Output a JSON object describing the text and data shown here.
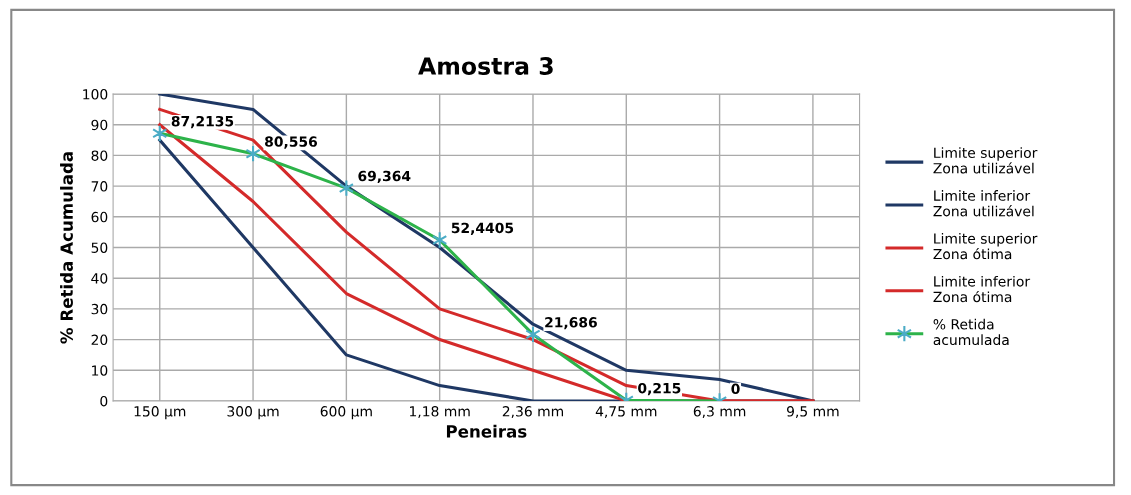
{
  "chart_data": {
    "type": "line",
    "title": "Amostra 3",
    "xlabel": "Peneiras",
    "ylabel": "% Retida Acumulada",
    "categories": [
      "150 µm",
      "300 µm",
      "600 µm",
      "1,18 mm",
      "2,36 mm",
      "4,75 mm",
      "6,3 mm",
      "9,5 mm"
    ],
    "series": [
      {
        "name": "Limite superior\nZona utilizável",
        "color": "#1f3864",
        "values": [
          100,
          95,
          70,
          50,
          25,
          10,
          7,
          0
        ]
      },
      {
        "name": "Limite inferior\nZona utilizável",
        "color": "#1f3864",
        "values": [
          85,
          50,
          15,
          5,
          0,
          0,
          0,
          0
        ]
      },
      {
        "name": "Limite superior\nZona ótima",
        "color": "#d42a2a",
        "values": [
          95,
          85,
          55,
          30,
          20,
          5,
          0,
          0
        ]
      },
      {
        "name": "Limite inferior\nZona ótima",
        "color": "#d42a2a",
        "values": [
          90,
          65,
          35,
          20,
          10,
          0,
          0,
          0
        ]
      },
      {
        "name": "% Retida\nacumulada",
        "color": "#2db34a",
        "marker": "cross",
        "values": [
          87.2135,
          80.556,
          69.364,
          52.4405,
          21.686,
          0.215,
          0,
          null
        ],
        "value_labels": [
          "87,2135",
          "80,556",
          "69,364",
          "52,4405",
          "21,686",
          "0,215",
          "0",
          null
        ]
      }
    ],
    "ylim": [
      0,
      100
    ],
    "yticks": [
      0,
      10,
      20,
      30,
      40,
      50,
      60,
      70,
      80,
      90,
      100
    ],
    "grid": true,
    "legend": "right"
  }
}
